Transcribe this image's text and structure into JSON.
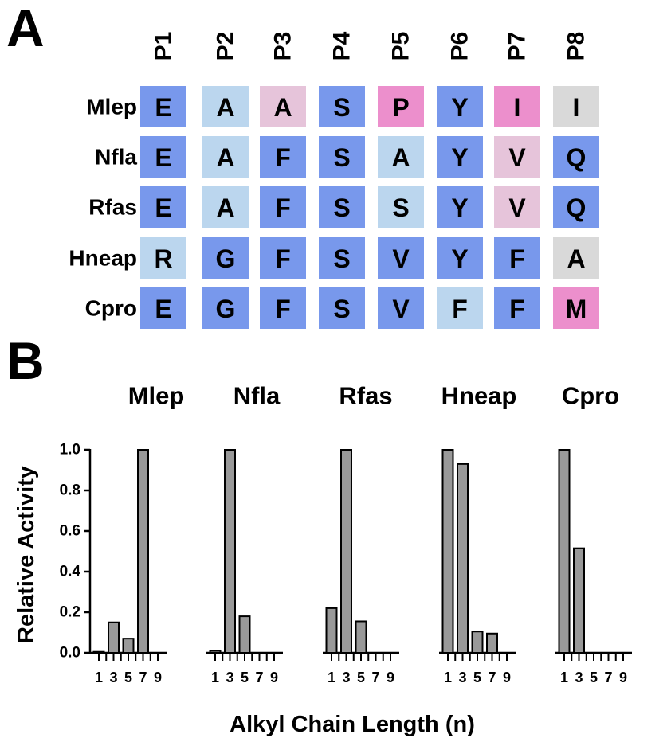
{
  "panel_a": {
    "letter": "A",
    "positions": [
      "P1",
      "P2",
      "P3",
      "P4",
      "P5",
      "P6",
      "P7",
      "P8"
    ],
    "species": [
      "Mlep",
      "Nfla",
      "Rfas",
      "Hneap",
      "Cpro"
    ],
    "residues": [
      [
        "E",
        "A",
        "A",
        "S",
        "P",
        "Y",
        "I",
        "I"
      ],
      [
        "E",
        "A",
        "F",
        "S",
        "A",
        "Y",
        "V",
        "Q"
      ],
      [
        "E",
        "A",
        "F",
        "S",
        "S",
        "Y",
        "V",
        "Q"
      ],
      [
        "R",
        "G",
        "F",
        "S",
        "V",
        "Y",
        "F",
        "A"
      ],
      [
        "E",
        "G",
        "F",
        "S",
        "V",
        "F",
        "F",
        "M"
      ]
    ],
    "cell_classes": [
      [
        "b",
        "l",
        "p",
        "b",
        "m",
        "b",
        "m",
        "g"
      ],
      [
        "b",
        "l",
        "b",
        "b",
        "l",
        "b",
        "p",
        "b"
      ],
      [
        "b",
        "l",
        "b",
        "b",
        "l",
        "b",
        "p",
        "b"
      ],
      [
        "l",
        "b",
        "b",
        "b",
        "b",
        "b",
        "b",
        "g"
      ],
      [
        "b",
        "b",
        "b",
        "b",
        "b",
        "l",
        "b",
        "m"
      ]
    ],
    "colors": {
      "b": "#7898EC",
      "l": "#BBD6EE",
      "p": "#E6C4DA",
      "m": "#EC8FCC",
      "g": "#D9D9D9"
    }
  },
  "panel_b": {
    "letter": "B"
  },
  "chart_data": {
    "type": "bar",
    "ylabel": "Relative Activity",
    "xlabel": "Alkyl Chain Length (n)",
    "ylim": [
      0,
      1.0
    ],
    "yticks": [
      "0.0",
      "0.2",
      "0.4",
      "0.6",
      "0.8",
      "1.0"
    ],
    "x_tick_labels": [
      "1",
      "3",
      "5",
      "7",
      "9"
    ],
    "bar_color": "#999999",
    "groups": [
      {
        "name": "Mlep",
        "x": [
          1,
          3,
          5,
          7,
          9
        ],
        "values": [
          0.005,
          0.15,
          0.07,
          1.0,
          0.0
        ]
      },
      {
        "name": "Nfla",
        "x": [
          1,
          3,
          5,
          7,
          9
        ],
        "values": [
          0.01,
          1.0,
          0.18,
          0.0,
          0.0
        ]
      },
      {
        "name": "Rfas",
        "x": [
          1,
          3,
          5,
          7,
          9
        ],
        "values": [
          0.22,
          1.0,
          0.155,
          0.0,
          0.0
        ]
      },
      {
        "name": "Hneap",
        "x": [
          1,
          3,
          5,
          7,
          9
        ],
        "values": [
          1.0,
          0.93,
          0.105,
          0.095,
          0.0
        ]
      },
      {
        "name": "Cpro",
        "x": [
          1,
          3,
          5,
          7,
          9
        ],
        "values": [
          1.0,
          0.515,
          0.0,
          0.0,
          0.0
        ]
      }
    ]
  }
}
